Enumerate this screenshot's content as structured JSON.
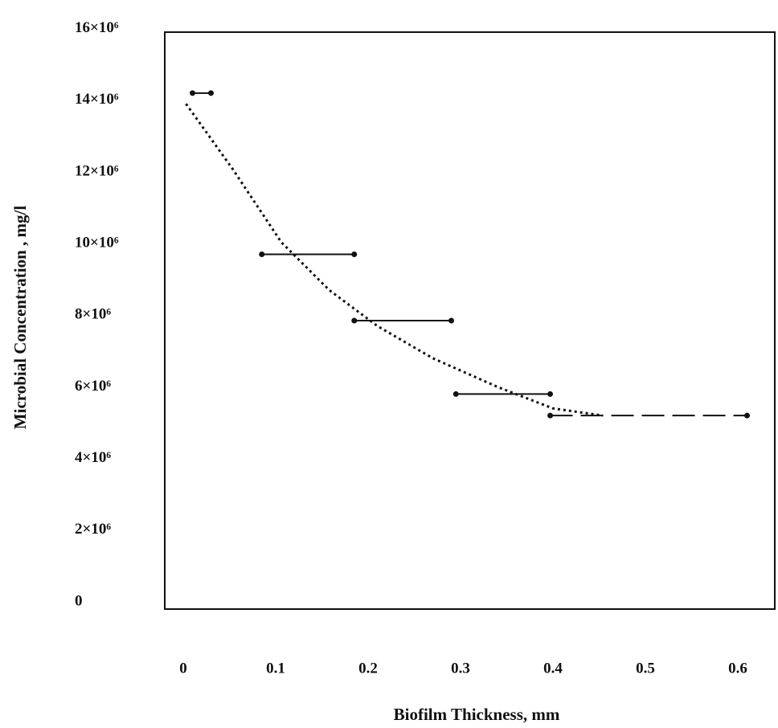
{
  "chart_data": {
    "type": "line",
    "x_label": "Biofilm Thickness, mm",
    "y_label": "Microbial  Concentration , mg/l",
    "xlim": [
      -0.02,
      0.64
    ],
    "ylim": [
      -200000,
      15900000
    ],
    "xticks": [
      0,
      0.1,
      0.2,
      0.3,
      0.4,
      0.5,
      0.6
    ],
    "yticks": [
      0,
      {
        "value": 2000000,
        "label": "2×10⁶"
      },
      {
        "value": 4000000,
        "label": "4×10⁶"
      },
      {
        "value": 6000000,
        "label": "6×10⁶"
      },
      {
        "value": 8000000,
        "label": "8×10⁶"
      },
      {
        "value": 10000000,
        "label": "10×10⁶"
      },
      {
        "value": 12000000,
        "label": "12×10⁶"
      },
      {
        "value": 14000000,
        "label": "14×10⁶"
      },
      {
        "value": 16000000,
        "label": "16×10⁶"
      }
    ],
    "grid": false,
    "series": [
      {
        "color": "#111111",
        "line_style": "solid",
        "markers": true,
        "x": [
          0.01,
          0.03
        ],
        "values": [
          14200000,
          14200000
        ]
      },
      {
        "color": "#111111",
        "line_style": "solid",
        "markers": true,
        "x": [
          0.085,
          0.185
        ],
        "values": [
          9700000,
          9700000
        ]
      },
      {
        "color": "#111111",
        "line_style": "solid",
        "markers": true,
        "x": [
          0.185,
          0.29
        ],
        "values": [
          7850000,
          7850000
        ]
      },
      {
        "color": "#111111",
        "line_style": "solid",
        "markers": true,
        "x": [
          0.295,
          0.397
        ],
        "values": [
          5800000,
          5800000
        ]
      },
      {
        "color": "#111111",
        "line_style": "dashed",
        "markers": true,
        "x": [
          0.397,
          0.61
        ],
        "values": [
          5200000,
          5200000
        ]
      },
      {
        "color": "#111111",
        "line_style": "dotted",
        "markers": false,
        "x": [
          0.003,
          0.054,
          0.106,
          0.158,
          0.21,
          0.27,
          0.34,
          0.4,
          0.454
        ],
        "values": [
          13900000,
          12060000,
          10040000,
          8700000,
          7700000,
          6800000,
          6000000,
          5400000,
          5200000
        ]
      }
    ]
  }
}
